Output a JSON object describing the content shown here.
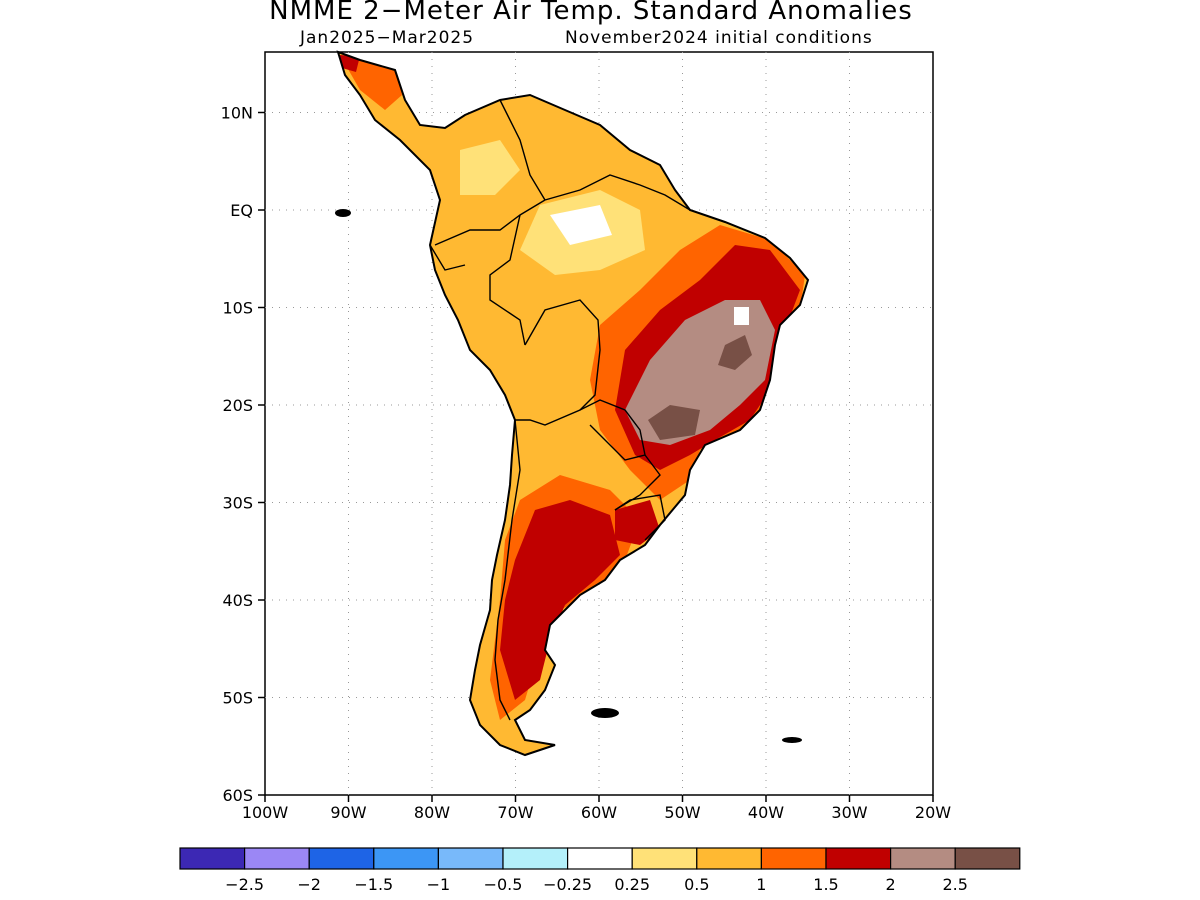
{
  "title": "NMME 2−Meter Air Temp. Standard Anomalies",
  "subtitle_left": "Jan2025−Mar2025",
  "subtitle_right": "November2024 initial conditions",
  "map": {
    "region": "South America",
    "lon_range": [
      -100,
      -20
    ],
    "lat_range": [
      -60,
      16
    ],
    "lat_ticks": [
      "10N",
      "EQ",
      "10S",
      "20S",
      "30S",
      "40S",
      "50S",
      "60S"
    ],
    "lon_ticks": [
      "100W",
      "90W",
      "80W",
      "70W",
      "60W",
      "50W",
      "40W",
      "30W",
      "20W"
    ],
    "grid": "dotted"
  },
  "colorbar": {
    "colors": [
      "#3c28b4",
      "#9b87f5",
      "#1e64e6",
      "#3c96f5",
      "#78b9fa",
      "#b4f0fa",
      "#ffffff",
      "#ffe178",
      "#ffb932",
      "#ff6400",
      "#c00000",
      "#b48c82",
      "#785046"
    ],
    "labels": [
      "−2.5",
      "−2",
      "−1.5",
      "−1",
      "−0.5",
      "−0.25",
      "0.25",
      "0.5",
      "1",
      "1.5",
      "2",
      "2.5"
    ]
  }
}
